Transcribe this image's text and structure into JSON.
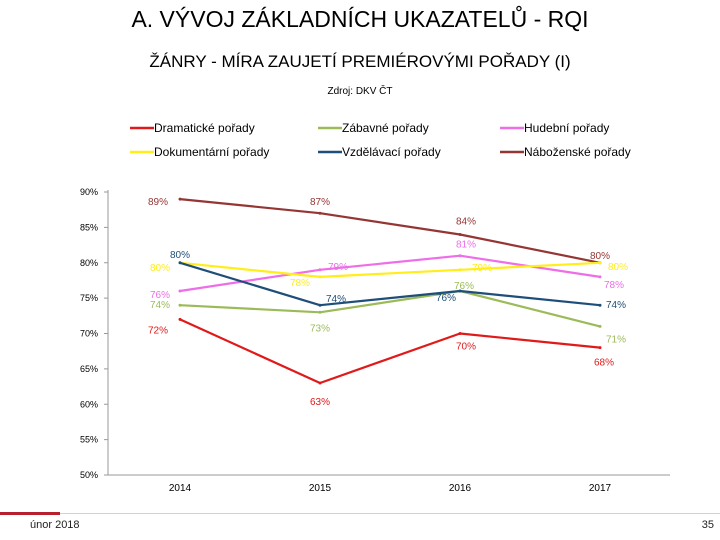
{
  "slide": {
    "title": "A. VÝVOJ ZÁKLADNÍCH UKAZATELŮ - RQI",
    "subtitle": "ŽÁNRY - MÍRA ZAUJETÍ PREMIÉROVÝMI POŘADY (I)",
    "source": "Zdroj: DKV ČT",
    "footer_date": "únor 2018",
    "page_number": "35"
  },
  "chart_data": {
    "type": "line",
    "categories": [
      "2014",
      "2015",
      "2016",
      "2017"
    ],
    "ylim": [
      50,
      90
    ],
    "y_ticks": [
      "50%",
      "55%",
      "60%",
      "65%",
      "70%",
      "75%",
      "80%",
      "85%",
      "90%"
    ],
    "legend_position": "top",
    "series": [
      {
        "name": "Dramatické pořady",
        "color": "#e01a1a",
        "values": [
          72,
          63,
          70,
          68
        ],
        "labels": [
          "72%",
          "63%",
          "70%",
          "68%"
        ]
      },
      {
        "name": "Zábavné pořady",
        "color": "#9bbb59",
        "values": [
          74,
          73,
          76,
          71
        ],
        "labels": [
          "74%",
          "73%",
          "76%",
          "71%"
        ]
      },
      {
        "name": "Hudební pořady",
        "color": "#ee6de8",
        "values": [
          76,
          79,
          81,
          78
        ],
        "labels": [
          "76%",
          "79%",
          "81%",
          "78%"
        ]
      },
      {
        "name": "Dokumentární pořady",
        "color": "#ffee1a",
        "values": [
          80,
          78,
          79,
          80
        ],
        "labels": [
          "80%",
          "78%",
          "79%",
          "80%"
        ]
      },
      {
        "name": "Vzdělávací pořady",
        "color": "#1f4e79",
        "values": [
          80,
          74,
          76,
          74
        ],
        "labels": [
          "80%",
          "74%",
          "76%",
          "74%"
        ]
      },
      {
        "name": "Náboženské pořady",
        "color": "#943634",
        "values": [
          89,
          87,
          84,
          80
        ],
        "labels": [
          "89%",
          "87%",
          "84%",
          "80%"
        ]
      }
    ]
  }
}
